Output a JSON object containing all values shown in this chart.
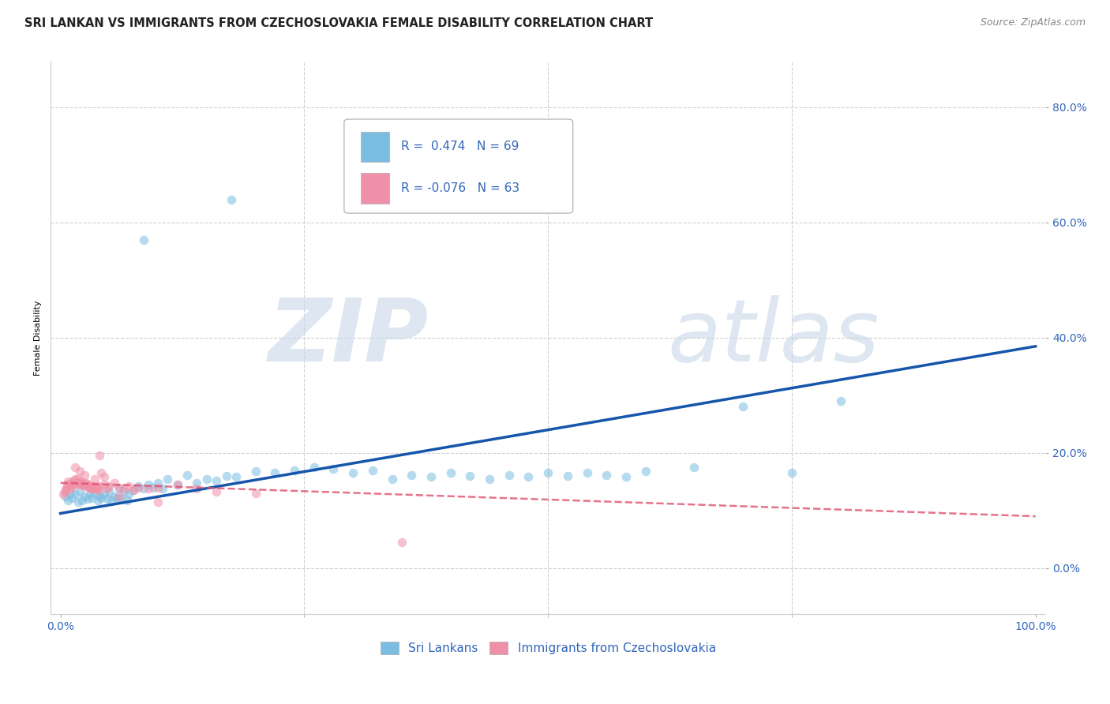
{
  "title": "SRI LANKAN VS IMMIGRANTS FROM CZECHOSLOVAKIA FEMALE DISABILITY CORRELATION CHART",
  "source": "Source: ZipAtlas.com",
  "ylabel_label": "Female Disability",
  "watermark_zip": "ZIP",
  "watermark_atlas": "atlas",
  "legend_entries": [
    {
      "label": "Sri Lankans",
      "color": "#a8c8e8",
      "R": 0.474,
      "N": 69
    },
    {
      "label": "Immigrants from Czechoslovakia",
      "color": "#f4a0b0",
      "R": -0.076,
      "N": 63
    }
  ],
  "blue_scatter_x": [
    0.005,
    0.008,
    0.01,
    0.012,
    0.015,
    0.018,
    0.02,
    0.022,
    0.025,
    0.028,
    0.03,
    0.032,
    0.035,
    0.038,
    0.04,
    0.042,
    0.045,
    0.048,
    0.05,
    0.052,
    0.055,
    0.058,
    0.06,
    0.062,
    0.065,
    0.068,
    0.07,
    0.075,
    0.08,
    0.085,
    0.09,
    0.095,
    0.1,
    0.105,
    0.11,
    0.12,
    0.13,
    0.14,
    0.15,
    0.16,
    0.17,
    0.18,
    0.2,
    0.22,
    0.24,
    0.26,
    0.28,
    0.3,
    0.32,
    0.34,
    0.36,
    0.38,
    0.4,
    0.42,
    0.44,
    0.46,
    0.48,
    0.5,
    0.52,
    0.54,
    0.56,
    0.58,
    0.6,
    0.65,
    0.7,
    0.75,
    0.8,
    0.085,
    0.175
  ],
  "blue_scatter_y": [
    0.125,
    0.118,
    0.13,
    0.122,
    0.128,
    0.115,
    0.132,
    0.118,
    0.125,
    0.12,
    0.128,
    0.122,
    0.13,
    0.118,
    0.125,
    0.122,
    0.128,
    0.12,
    0.132,
    0.118,
    0.125,
    0.122,
    0.138,
    0.12,
    0.132,
    0.118,
    0.128,
    0.135,
    0.142,
    0.138,
    0.145,
    0.14,
    0.148,
    0.138,
    0.155,
    0.145,
    0.162,
    0.148,
    0.155,
    0.152,
    0.16,
    0.158,
    0.168,
    0.165,
    0.17,
    0.175,
    0.172,
    0.165,
    0.17,
    0.155,
    0.162,
    0.158,
    0.165,
    0.16,
    0.155,
    0.162,
    0.158,
    0.165,
    0.16,
    0.165,
    0.162,
    0.158,
    0.168,
    0.175,
    0.28,
    0.165,
    0.29,
    0.57,
    0.64
  ],
  "pink_scatter_x": [
    0.003,
    0.004,
    0.005,
    0.006,
    0.007,
    0.008,
    0.009,
    0.01,
    0.011,
    0.012,
    0.013,
    0.014,
    0.015,
    0.016,
    0.017,
    0.018,
    0.019,
    0.02,
    0.021,
    0.022,
    0.023,
    0.024,
    0.025,
    0.026,
    0.027,
    0.028,
    0.029,
    0.03,
    0.031,
    0.032,
    0.033,
    0.034,
    0.035,
    0.036,
    0.037,
    0.038,
    0.039,
    0.04,
    0.042,
    0.045,
    0.048,
    0.05,
    0.055,
    0.06,
    0.065,
    0.07,
    0.075,
    0.08,
    0.09,
    0.1,
    0.12,
    0.14,
    0.16,
    0.2,
    0.04,
    0.015,
    0.02,
    0.025,
    0.035,
    0.045,
    0.06,
    0.1,
    0.35
  ],
  "pink_scatter_y": [
    0.128,
    0.132,
    0.135,
    0.14,
    0.145,
    0.15,
    0.145,
    0.138,
    0.148,
    0.142,
    0.152,
    0.145,
    0.155,
    0.148,
    0.155,
    0.15,
    0.148,
    0.145,
    0.15,
    0.145,
    0.148,
    0.145,
    0.142,
    0.148,
    0.145,
    0.142,
    0.145,
    0.138,
    0.14,
    0.138,
    0.142,
    0.138,
    0.14,
    0.142,
    0.138,
    0.14,
    0.135,
    0.142,
    0.165,
    0.145,
    0.138,
    0.142,
    0.148,
    0.14,
    0.138,
    0.142,
    0.135,
    0.14,
    0.138,
    0.14,
    0.145,
    0.138,
    0.132,
    0.13,
    0.195,
    0.175,
    0.168,
    0.162,
    0.155,
    0.158,
    0.125,
    0.115,
    0.045
  ],
  "blue_line_x": [
    0.0,
    1.0
  ],
  "blue_line_y": [
    0.095,
    0.385
  ],
  "pink_line_x": [
    0.0,
    1.0
  ],
  "pink_line_y": [
    0.148,
    0.09
  ],
  "xlim": [
    -0.01,
    1.01
  ],
  "ylim": [
    -0.08,
    0.88
  ],
  "xticks": [
    0.0,
    1.0
  ],
  "xtick_labels": [
    "0.0%",
    "100.0%"
  ],
  "yticks": [
    0.0,
    0.2,
    0.4,
    0.6,
    0.8
  ],
  "ytick_labels": [
    "0.0%",
    "20.0%",
    "40.0%",
    "60.0%",
    "80.0%"
  ],
  "scatter_size": 70,
  "scatter_alpha": 0.55,
  "blue_dot_color": "#7bbde0",
  "pink_dot_color": "#f090a8",
  "blue_line_color": "#1555aa",
  "pink_line_color": "#e05070",
  "grid_color": "#d0d0d0",
  "tick_color": "#3366bb",
  "title_fontsize": 10.5,
  "source_fontsize": 9,
  "axis_label_fontsize": 8,
  "tick_fontsize": 10,
  "legend_fontsize": 11
}
